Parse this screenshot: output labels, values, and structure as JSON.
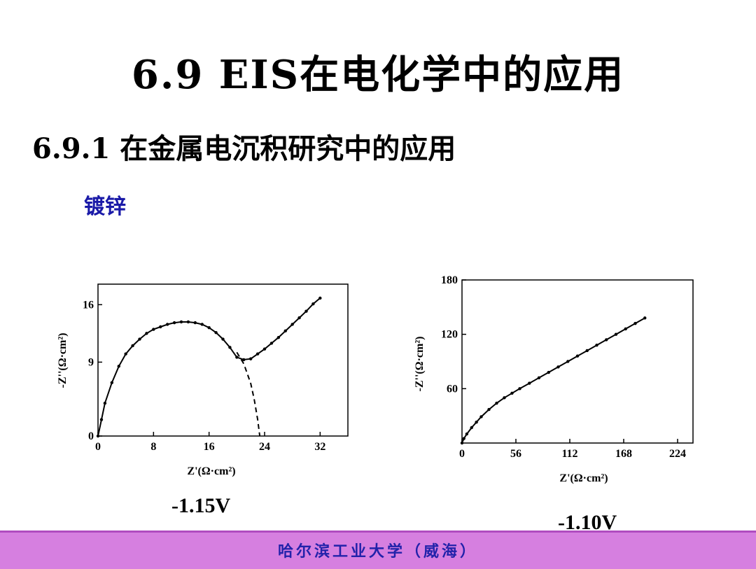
{
  "slide": {
    "title": "6.9   EIS在电化学中的应用",
    "subtitle": "6.9.1 在金属电沉积研究中的应用",
    "topic": "镀锌",
    "footer": "哈尔滨工业大学（威海）",
    "colors": {
      "footer_bar": "#d67fe0",
      "footer_text": "#2222aa",
      "topic": "#1a1aa8"
    }
  },
  "chart_data": [
    {
      "type": "line",
      "caption": "-1.15V",
      "xlabel": "Z'(Ω·cm²)",
      "ylabel": "-Z''(Ω·cm²)",
      "xlim": [
        0,
        36
      ],
      "ylim": [
        0,
        18.5
      ],
      "xticks": [
        0,
        8,
        16,
        24,
        32
      ],
      "yticks": [
        0,
        9,
        16
      ],
      "grid": false,
      "series": [
        {
          "style": "solid-with-markers",
          "x": [
            0,
            0.5,
            1,
            2,
            3,
            4,
            5,
            6,
            7,
            8,
            9,
            10,
            11,
            12,
            13,
            14,
            15,
            16,
            17,
            18,
            19,
            20,
            21,
            22,
            23,
            24,
            25,
            26,
            27,
            28,
            29,
            30,
            31,
            32
          ],
          "y": [
            0,
            2,
            4,
            6.5,
            8.5,
            10,
            11,
            11.8,
            12.5,
            13,
            13.3,
            13.6,
            13.8,
            13.9,
            13.9,
            13.8,
            13.6,
            13.2,
            12.6,
            11.8,
            10.8,
            9.6,
            9.3,
            9.4,
            10,
            10.6,
            11.3,
            12,
            12.8,
            13.6,
            14.4,
            15.2,
            16.1,
            16.8
          ]
        },
        {
          "style": "dashed",
          "x": [
            20,
            21,
            22,
            22.5,
            23,
            23.3
          ],
          "y": [
            10.2,
            8.8,
            6.4,
            4.5,
            2,
            0
          ]
        }
      ]
    },
    {
      "type": "line",
      "caption": "-1.10V",
      "xlabel": "Z'(Ω·cm²)",
      "ylabel": "-Z''(Ω·cm²)",
      "xlim": [
        0,
        240
      ],
      "ylim": [
        0,
        180
      ],
      "xticks": [
        0,
        56,
        112,
        168,
        224
      ],
      "yticks": [
        60,
        120,
        180
      ],
      "grid": false,
      "series": [
        {
          "style": "solid-with-markers",
          "x": [
            0,
            2,
            5,
            10,
            15,
            20,
            28,
            36,
            44,
            52,
            60,
            70,
            80,
            90,
            100,
            110,
            120,
            130,
            140,
            150,
            160,
            170,
            180,
            190
          ],
          "y": [
            0,
            5,
            10,
            17,
            23,
            29,
            37,
            44,
            50,
            55,
            60,
            66,
            72,
            78,
            84,
            90,
            96,
            102,
            108,
            114,
            120,
            126,
            132,
            138
          ]
        }
      ]
    }
  ]
}
